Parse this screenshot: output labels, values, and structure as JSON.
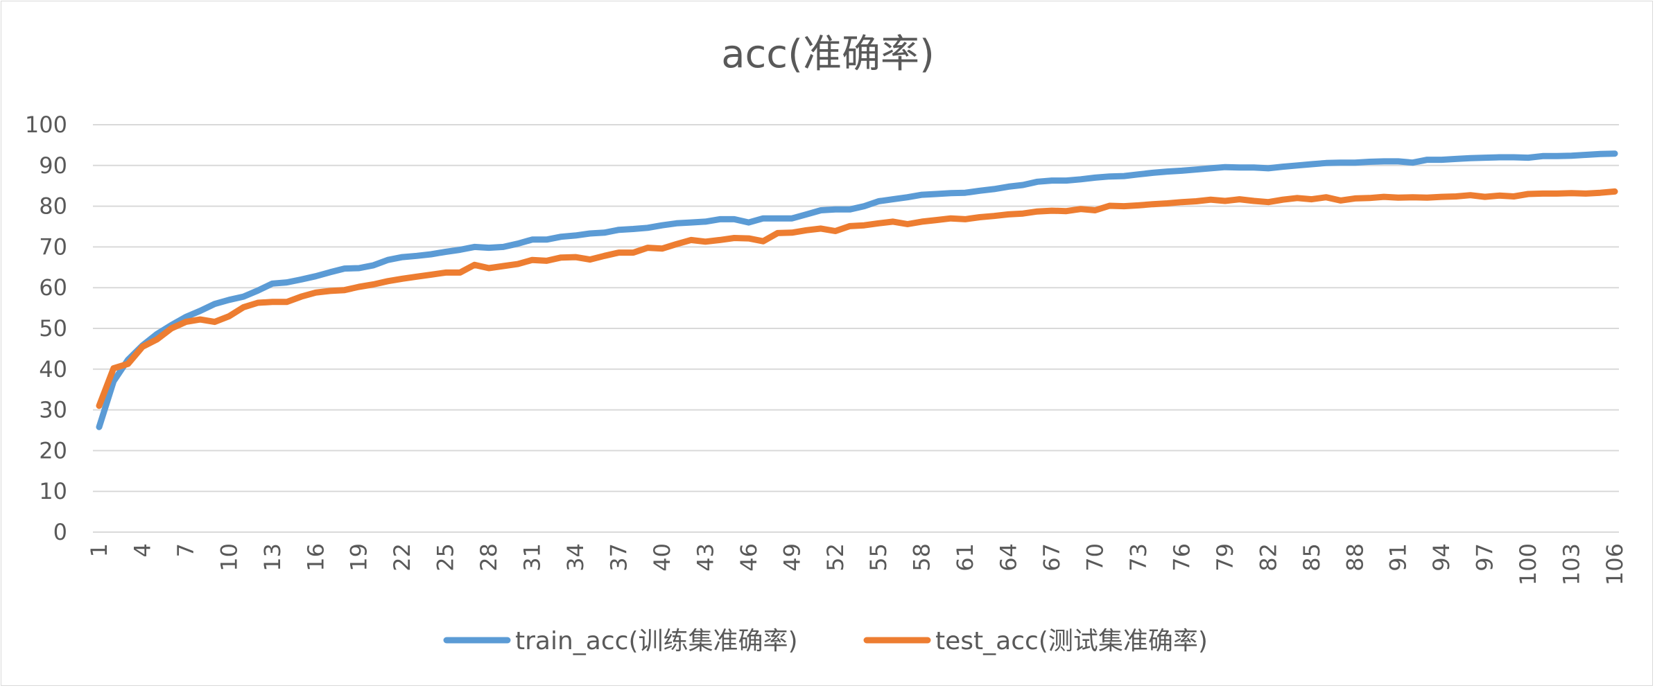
{
  "chart_data": {
    "type": "line",
    "title": "acc(准确率)",
    "xlabel": "",
    "ylabel": "",
    "ylim": [
      0,
      100
    ],
    "yticks": [
      0,
      10,
      20,
      30,
      40,
      50,
      60,
      70,
      80,
      90,
      100
    ],
    "xrange": [
      1,
      106
    ],
    "xtick_labels": [
      "1",
      "4",
      "7",
      "10",
      "13",
      "16",
      "19",
      "22",
      "25",
      "28",
      "31",
      "34",
      "37",
      "40",
      "43",
      "46",
      "49",
      "52",
      "55",
      "58",
      "61",
      "64",
      "67",
      "70",
      "73",
      "76",
      "79",
      "82",
      "85",
      "88",
      "91",
      "94",
      "97",
      "100",
      "103",
      "106"
    ],
    "grid": true,
    "legend_position": "bottom",
    "series": [
      {
        "name": "train_acc(训练集准确率)",
        "color": "#5B9BD5",
        "values": [
          25.8,
          37.0,
          42.3,
          45.8,
          48.6,
          50.8,
          52.8,
          54.3,
          56.0,
          57.0,
          57.8,
          59.3,
          61.0,
          61.3,
          62.0,
          62.8,
          63.8,
          64.7,
          64.8,
          65.5,
          66.8,
          67.5,
          67.8,
          68.2,
          68.8,
          69.3,
          70.0,
          69.8,
          70.0,
          70.8,
          71.8,
          71.8,
          72.5,
          72.8,
          73.3,
          73.5,
          74.2,
          74.4,
          74.7,
          75.3,
          75.8,
          76.0,
          76.2,
          76.8,
          76.8,
          76.0,
          77.0,
          77.0,
          77.0,
          78.0,
          79.0,
          79.2,
          79.2,
          80.0,
          81.2,
          81.7,
          82.2,
          82.8,
          83.0,
          83.2,
          83.3,
          83.8,
          84.2,
          84.8,
          85.2,
          86.0,
          86.3,
          86.3,
          86.6,
          87.0,
          87.3,
          87.4,
          87.8,
          88.2,
          88.5,
          88.7,
          89.0,
          89.3,
          89.6,
          89.5,
          89.5,
          89.3,
          89.7,
          90.0,
          90.3,
          90.6,
          90.7,
          90.7,
          90.9,
          91.0,
          91.0,
          90.7,
          91.4,
          91.4,
          91.6,
          91.8,
          91.9,
          92.0,
          92.0,
          91.9,
          92.3,
          92.3,
          92.4,
          92.6,
          92.8,
          92.9
        ]
      },
      {
        "name": "test_acc(测试集准确率)",
        "color": "#ED7D31",
        "values": [
          31.0,
          40.2,
          41.3,
          45.5,
          47.3,
          50.0,
          51.6,
          52.2,
          51.6,
          53.0,
          55.2,
          56.3,
          56.5,
          56.5,
          57.8,
          58.8,
          59.2,
          59.4,
          60.2,
          60.8,
          61.6,
          62.2,
          62.7,
          63.2,
          63.7,
          63.7,
          65.6,
          64.8,
          65.3,
          65.8,
          66.8,
          66.6,
          67.4,
          67.5,
          66.9,
          67.8,
          68.6,
          68.6,
          69.8,
          69.6,
          70.7,
          71.7,
          71.3,
          71.7,
          72.2,
          72.1,
          71.4,
          73.4,
          73.5,
          74.1,
          74.5,
          73.9,
          75.1,
          75.3,
          75.8,
          76.2,
          75.6,
          76.2,
          76.6,
          77.0,
          76.8,
          77.3,
          77.6,
          78.0,
          78.2,
          78.7,
          78.9,
          78.8,
          79.3,
          79.0,
          80.1,
          80.0,
          80.2,
          80.5,
          80.7,
          81.0,
          81.2,
          81.6,
          81.3,
          81.7,
          81.3,
          81.0,
          81.6,
          82.0,
          81.7,
          82.2,
          81.4,
          81.9,
          82.0,
          82.3,
          82.1,
          82.2,
          82.1,
          82.3,
          82.4,
          82.7,
          82.3,
          82.6,
          82.4,
          83.0,
          83.1,
          83.1,
          83.2,
          83.1,
          83.3,
          83.6
        ]
      }
    ]
  }
}
